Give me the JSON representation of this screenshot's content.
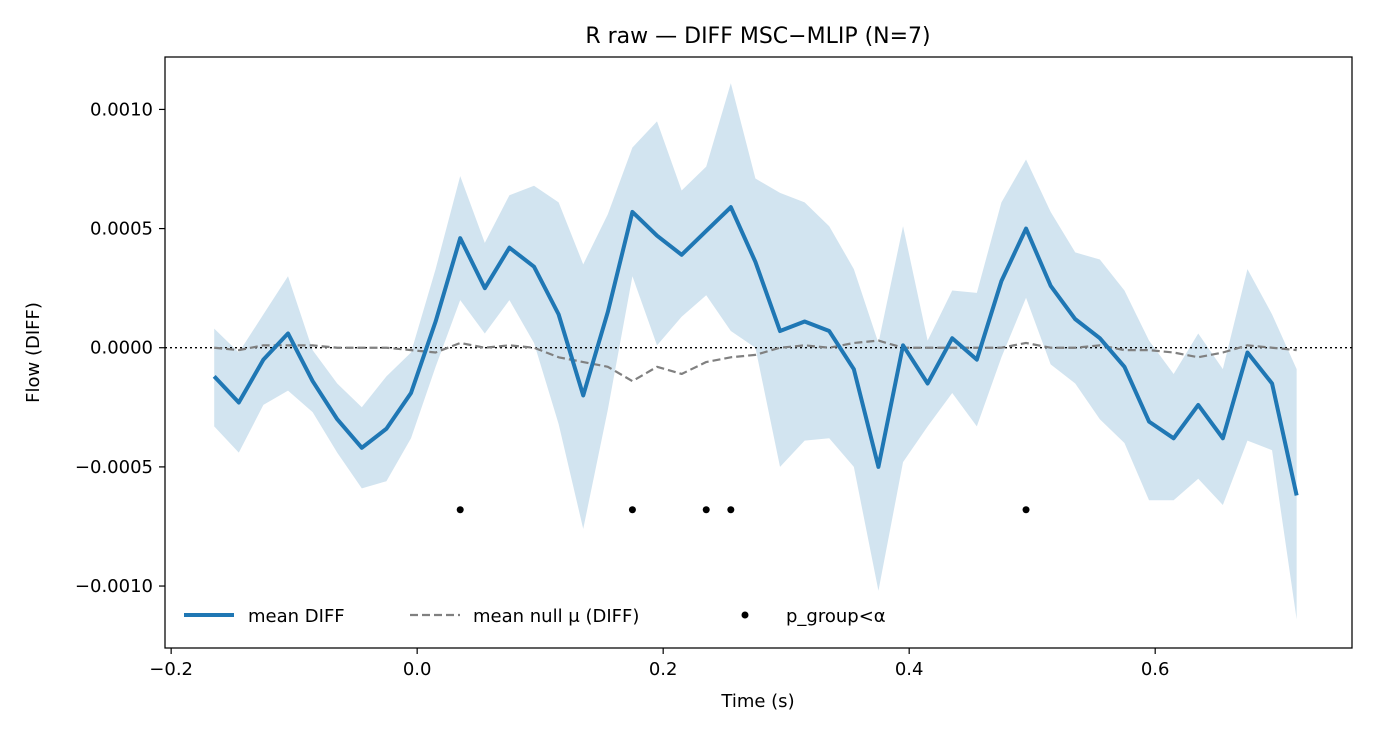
{
  "chart_data": {
    "type": "line",
    "title": "R raw — DIFF MSC−MLIP (N=7)",
    "xlabel": "Time (s)",
    "ylabel": "Flow (DIFF)",
    "xlim": [
      -0.205,
      0.76
    ],
    "ylim": [
      -0.00126,
      0.00122
    ],
    "grid": false,
    "legend_position": "lower-left",
    "xticks": [
      -0.2,
      0.0,
      0.2,
      0.4,
      0.6
    ],
    "xtick_labels": [
      "−0.2",
      "0.0",
      "0.2",
      "0.4",
      "0.6"
    ],
    "yticks": [
      -0.001,
      -0.0005,
      0.0,
      0.0005,
      0.001
    ],
    "ytick_labels": [
      "−0.0010",
      "−0.0005",
      "0.0000",
      "0.0005",
      "0.0010"
    ],
    "x": [
      -0.165,
      -0.145,
      -0.125,
      -0.105,
      -0.085,
      -0.065,
      -0.045,
      -0.025,
      -0.005,
      0.015,
      0.035,
      0.055,
      0.075,
      0.095,
      0.115,
      0.135,
      0.155,
      0.175,
      0.195,
      0.215,
      0.235,
      0.255,
      0.275,
      0.295,
      0.315,
      0.335,
      0.355,
      0.375,
      0.395,
      0.415,
      0.435,
      0.455,
      0.475,
      0.495,
      0.515,
      0.535,
      0.555,
      0.575,
      0.595,
      0.615,
      0.635,
      0.655,
      0.675,
      0.695,
      0.715
    ],
    "series": [
      {
        "name": "mean DIFF",
        "color": "#1f77b4",
        "style": "solid",
        "values": [
          -0.00012,
          -0.00023,
          -5e-05,
          6e-05,
          -0.00014,
          -0.0003,
          -0.00042,
          -0.00034,
          -0.00019,
          0.00011,
          0.00046,
          0.00025,
          0.00042,
          0.00034,
          0.00014,
          -0.0002,
          0.00015,
          0.00057,
          0.00047,
          0.00039,
          0.00049,
          0.00059,
          0.00036,
          7e-05,
          0.00011,
          7e-05,
          -9e-05,
          -0.0005,
          1e-05,
          -0.00015,
          4e-05,
          -5e-05,
          0.00028,
          0.0005,
          0.00026,
          0.00012,
          4e-05,
          -8e-05,
          -0.00031,
          -0.00038,
          -0.00024,
          -0.00038,
          -2e-05,
          -0.00015,
          -0.00062
        ]
      },
      {
        "name": "mean null μ (DIFF)",
        "color": "#808080",
        "style": "dashed",
        "values": [
          0.0,
          -1e-05,
          1e-05,
          1e-05,
          1e-05,
          0.0,
          0.0,
          0.0,
          -1e-05,
          -2e-05,
          2e-05,
          0.0,
          1e-05,
          0.0,
          -4e-05,
          -6e-05,
          -8e-05,
          -0.00014,
          -8e-05,
          -0.00011,
          -6e-05,
          -4e-05,
          -3e-05,
          0.0,
          1e-05,
          0.0,
          2e-05,
          3e-05,
          0.0,
          0.0,
          0.0,
          0.0,
          0.0,
          2e-05,
          0.0,
          0.0,
          1e-05,
          -1e-05,
          -1e-05,
          -2e-05,
          -4e-05,
          -2e-05,
          1e-05,
          0.0,
          -1e-05
        ]
      }
    ],
    "band": {
      "color": "#1f77b4",
      "opacity": 0.2,
      "lower": [
        -0.00033,
        -0.00044,
        -0.00024,
        -0.00018,
        -0.00027,
        -0.00044,
        -0.00059,
        -0.00056,
        -0.00038,
        -8e-05,
        0.0002,
        6e-05,
        0.0002,
        2e-05,
        -0.00032,
        -0.00076,
        -0.00026,
        0.0003,
        1e-05,
        0.00013,
        0.00022,
        7e-05,
        0.0,
        -0.0005,
        -0.00039,
        -0.00038,
        -0.0005,
        -0.00102,
        -0.00048,
        -0.00033,
        -0.00019,
        -0.00033,
        -4e-05,
        0.00021,
        -7e-05,
        -0.00015,
        -0.0003,
        -0.0004,
        -0.00064,
        -0.00064,
        -0.00055,
        -0.00066,
        -0.00039,
        -0.00043,
        -0.00114
      ],
      "upper": [
        8e-05,
        -2e-05,
        0.00014,
        0.0003,
        -1e-05,
        -0.00015,
        -0.00025,
        -0.00012,
        -2e-05,
        0.00033,
        0.00072,
        0.00044,
        0.00064,
        0.00068,
        0.00061,
        0.00035,
        0.00056,
        0.00084,
        0.00095,
        0.00066,
        0.00076,
        0.00111,
        0.00071,
        0.00065,
        0.00061,
        0.00051,
        0.00033,
        2e-05,
        0.00051,
        3e-05,
        0.00024,
        0.00023,
        0.00061,
        0.00079,
        0.00057,
        0.0004,
        0.00037,
        0.00024,
        3e-05,
        -0.00011,
        6e-05,
        -9e-05,
        0.00033,
        0.00014,
        -9e-05
      ]
    },
    "significant": {
      "name": "p_group<α",
      "color": "#000000",
      "y": -0.00068,
      "x": [
        0.035,
        0.175,
        0.235,
        0.255,
        0.495
      ]
    },
    "zero_line": {
      "y": 0.0,
      "style": "dotted",
      "color": "#000000"
    }
  }
}
